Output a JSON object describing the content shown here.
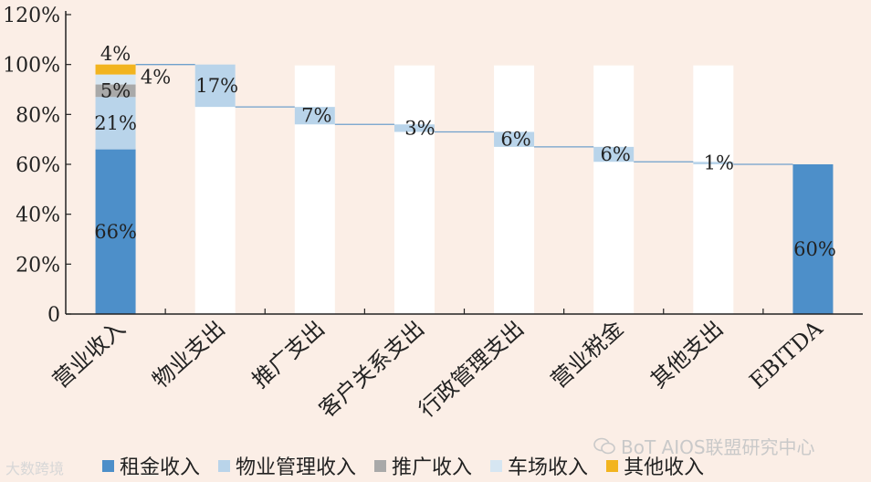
{
  "chart_data": {
    "type": "waterfall",
    "categories": [
      "营业收入",
      "物业支出",
      "推广支出",
      "客户关系支出",
      "行政管理支出",
      "营业税金",
      "其他支出",
      "EBITDA"
    ],
    "ylim": [
      0,
      120
    ],
    "yticks": [
      "0",
      "20%",
      "40%",
      "60%",
      "80%",
      "100%",
      "120%"
    ],
    "ytick_values": [
      0,
      20,
      40,
      60,
      80,
      100,
      120
    ],
    "grid": false,
    "revenue_stack": [
      {
        "name": "租金收入",
        "value": 66,
        "label": "66%",
        "color": "#4d8fc9"
      },
      {
        "name": "物业管理收入",
        "value": 21,
        "label": "21%",
        "color": "#b9d4ea"
      },
      {
        "name": "推广收入",
        "value": 5,
        "label": "5%",
        "color": "#a9a9a9"
      },
      {
        "name": "车场收入",
        "value": 4,
        "label": "4%",
        "color": "#d6e6f2"
      },
      {
        "name": "其他收入",
        "value": 4,
        "label": "4%",
        "color": "#f2b41f"
      }
    ],
    "expenses": [
      {
        "category": "物业支出",
        "value": 17,
        "label": "17%"
      },
      {
        "category": "推广支出",
        "value": 7,
        "label": "7%"
      },
      {
        "category": "客户关系支出",
        "value": 3,
        "label": "3%"
      },
      {
        "category": "行政管理支出",
        "value": 6,
        "label": "6%"
      },
      {
        "category": "营业税金",
        "value": 6,
        "label": "6%"
      },
      {
        "category": "其他支出",
        "value": 1,
        "label": "1%"
      }
    ],
    "result": {
      "category": "EBITDA",
      "value": 60,
      "label": "60%",
      "color": "#4d8fc9"
    },
    "expense_color": "#b9d4ea",
    "column_background": "#ffffff",
    "legend_position": "bottom"
  },
  "legend": [
    {
      "label": "租金收入",
      "color": "#4d8fc9"
    },
    {
      "label": "物业管理收入",
      "color": "#b9d4ea"
    },
    {
      "label": "推广收入",
      "color": "#a9a9a9"
    },
    {
      "label": "车场收入",
      "color": "#d6e6f2"
    },
    {
      "label": "其他收入",
      "color": "#f2b41f"
    }
  ],
  "watermark_left": "大数跨境",
  "watermark_right": "BoT AIOS联盟研究中心"
}
